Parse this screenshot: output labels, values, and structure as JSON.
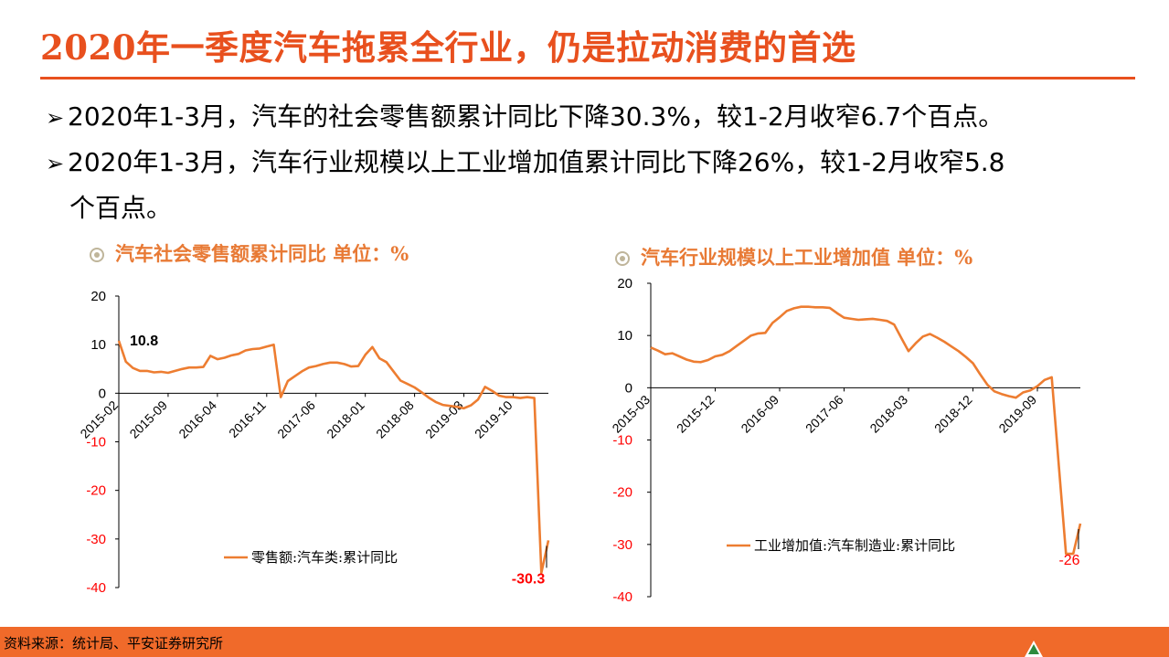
{
  "title": "2020年一季度汽车拖累全行业，仍是拉动消费的首选",
  "bullets": [
    "2020年1-3月，汽车的社会零售额累计同比下降30.3%，较1-2月收窄6.7个百点。",
    "2020年1-3月，汽车行业规模以上工业增加值累计同比下降26%，较1-2月收窄5.8"
  ],
  "bullet_continuation": "个百点。",
  "footer": {
    "source": "资料来源：统计局、平安证券研究所"
  },
  "colors": {
    "accent": "#e8501e",
    "line": "#ed7d31",
    "negative": "#ff0000",
    "footer_bg": "#f06a2a"
  },
  "icons": {
    "bullet": "arrow-right-icon",
    "chart_heading": "circle-dot-icon",
    "logo": "tree-logo-icon"
  },
  "chart_data": [
    {
      "type": "line",
      "heading": "汽车社会零售额累计同比 单位：%",
      "title": "",
      "xlabel": "",
      "ylabel": "",
      "ylim": [
        -40,
        20
      ],
      "yticks": [
        20,
        10,
        0,
        -10,
        -20,
        -30,
        -40
      ],
      "x_ticks": [
        "2015-02",
        "2015-09",
        "2016-04",
        "2016-11",
        "2017-06",
        "2018-01",
        "2018-08",
        "2019-03",
        "2019-10"
      ],
      "grid": false,
      "legend": {
        "position": "bottom-right",
        "entries": [
          "零售额:汽车类:累计同比"
        ]
      },
      "annotations": [
        {
          "text": "10.8",
          "x": "2015-02",
          "y": 10.8
        },
        {
          "text": "-30.3",
          "x": "2020-03",
          "y": -30.3
        }
      ],
      "series": [
        {
          "name": "零售额:汽车类:累计同比",
          "x": [
            "2015-02",
            "2015-03",
            "2015-04",
            "2015-05",
            "2015-06",
            "2015-07",
            "2015-08",
            "2015-09",
            "2015-10",
            "2015-11",
            "2015-12",
            "2016-01",
            "2016-02",
            "2016-03",
            "2016-04",
            "2016-05",
            "2016-06",
            "2016-07",
            "2016-08",
            "2016-09",
            "2016-10",
            "2016-11",
            "2016-12",
            "2017-01",
            "2017-02",
            "2017-03",
            "2017-04",
            "2017-05",
            "2017-06",
            "2017-07",
            "2017-08",
            "2017-09",
            "2017-10",
            "2017-11",
            "2017-12",
            "2018-01",
            "2018-02",
            "2018-03",
            "2018-04",
            "2018-05",
            "2018-06",
            "2018-07",
            "2018-08",
            "2018-09",
            "2018-10",
            "2018-11",
            "2018-12",
            "2019-01",
            "2019-02",
            "2019-03",
            "2019-04",
            "2019-05",
            "2019-06",
            "2019-07",
            "2019-08",
            "2019-09",
            "2019-10",
            "2019-11",
            "2019-12",
            "2020-01",
            "2020-02",
            "2020-03"
          ],
          "values": [
            10.8,
            6.5,
            5.2,
            4.6,
            4.6,
            4.3,
            4.4,
            4.2,
            4.6,
            5.0,
            5.3,
            5.3,
            5.4,
            7.7,
            7.0,
            7.3,
            7.8,
            8.1,
            8.8,
            9.1,
            9.2,
            9.6,
            10.0,
            -0.8,
            2.5,
            3.5,
            4.5,
            5.3,
            5.6,
            6.0,
            6.3,
            6.3,
            6.0,
            5.5,
            5.6,
            7.9,
            9.5,
            7.2,
            6.4,
            4.5,
            2.6,
            1.9,
            1.2,
            0.2,
            -0.9,
            -1.8,
            -2.4,
            -2.6,
            -2.8,
            -3.1,
            -2.5,
            -1.3,
            1.3,
            0.5,
            -0.5,
            -0.8,
            -0.8,
            -1.0,
            -0.8,
            -1.0,
            -37.0,
            -30.3
          ]
        }
      ]
    },
    {
      "type": "line",
      "heading": "汽车行业规模以上工业增加值 单位：%",
      "title": "",
      "xlabel": "",
      "ylabel": "",
      "ylim": [
        -40,
        20
      ],
      "yticks": [
        20,
        10,
        0,
        -10,
        -20,
        -30,
        -40
      ],
      "x_ticks": [
        "2015-03",
        "2015-12",
        "2016-09",
        "2017-06",
        "2018-03",
        "2018-12",
        "2019-09"
      ],
      "grid": false,
      "legend": {
        "position": "bottom-right",
        "entries": [
          "工业增加值:汽车制造业:累计同比"
        ]
      },
      "annotations": [
        {
          "text": "-26",
          "x": "2020-03",
          "y": -26
        }
      ],
      "series": [
        {
          "name": "工业增加值:汽车制造业:累计同比",
          "x": [
            "2015-03",
            "2015-04",
            "2015-05",
            "2015-06",
            "2015-07",
            "2015-08",
            "2015-09",
            "2015-10",
            "2015-11",
            "2015-12",
            "2016-01",
            "2016-02",
            "2016-03",
            "2016-04",
            "2016-05",
            "2016-06",
            "2016-07",
            "2016-08",
            "2016-09",
            "2016-10",
            "2016-11",
            "2016-12",
            "2017-01",
            "2017-02",
            "2017-03",
            "2017-04",
            "2017-05",
            "2017-06",
            "2017-07",
            "2017-08",
            "2017-09",
            "2017-10",
            "2017-11",
            "2017-12",
            "2018-01",
            "2018-02",
            "2018-03",
            "2018-04",
            "2018-05",
            "2018-06",
            "2018-07",
            "2018-08",
            "2018-09",
            "2018-10",
            "2018-11",
            "2018-12",
            "2019-01",
            "2019-02",
            "2019-03",
            "2019-04",
            "2019-05",
            "2019-06",
            "2019-07",
            "2019-08",
            "2019-09",
            "2019-10",
            "2019-11",
            "2019-12",
            "2020-01",
            "2020-02",
            "2020-03"
          ],
          "values": [
            7.7,
            7.1,
            6.4,
            6.6,
            6.0,
            5.4,
            5.0,
            4.9,
            5.3,
            6.0,
            6.3,
            7.0,
            8.0,
            9.0,
            10.0,
            10.4,
            10.5,
            12.4,
            13.5,
            14.7,
            15.2,
            15.5,
            15.5,
            15.4,
            15.4,
            15.3,
            14.3,
            13.4,
            13.2,
            13.0,
            13.1,
            13.2,
            13.0,
            12.8,
            12.1,
            9.5,
            7.0,
            8.5,
            9.8,
            10.3,
            9.6,
            8.8,
            7.9,
            7.0,
            5.9,
            4.7,
            2.6,
            0.6,
            -0.7,
            -1.2,
            -1.6,
            -1.9,
            -0.9,
            -0.5,
            0.3,
            1.5,
            2.0,
            -15.0,
            -31.8,
            -31.8,
            -26.0
          ]
        }
      ]
    }
  ]
}
